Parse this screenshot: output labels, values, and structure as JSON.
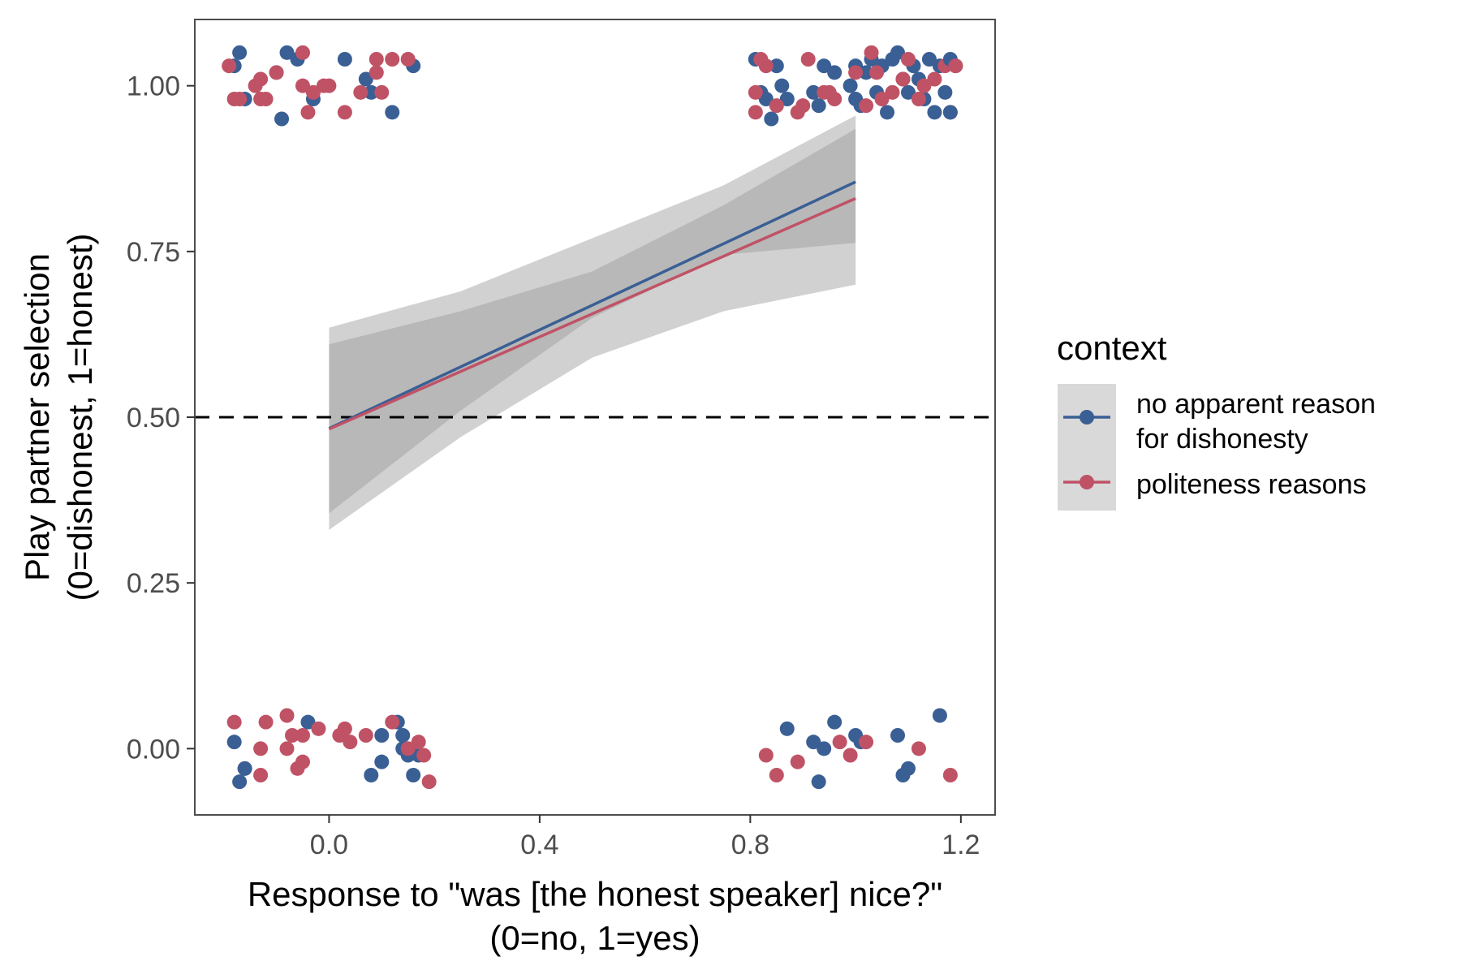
{
  "chart_data": {
    "type": "scatter",
    "title": "",
    "xlabel": [
      "Response to \"was [the honest speaker] nice?\"",
      "(0=no, 1=yes)"
    ],
    "ylabel": [
      "Play partner selection",
      "(0=dishonest, 1=honest)"
    ],
    "xlim": [
      -0.255,
      1.265
    ],
    "ylim": [
      -0.1,
      1.1
    ],
    "x_ticks": [
      0.0,
      0.4,
      0.8,
      1.2
    ],
    "x_tick_labels": [
      "0.0",
      "0.4",
      "0.8",
      "1.2"
    ],
    "y_ticks": [
      0.0,
      0.25,
      0.5,
      0.75,
      1.0
    ],
    "y_tick_labels": [
      "0.00",
      "0.25",
      "0.50",
      "0.75",
      "1.00"
    ],
    "reference_line": {
      "y": 0.5,
      "style": "dashed",
      "color": "#000000"
    },
    "grid": false,
    "legend": {
      "title": "context",
      "placement": "right",
      "entries": [
        "no apparent reason\nfor dishonesty",
        "politeness reasons"
      ]
    },
    "series": [
      {
        "name": "no apparent reason\nfor dishonesty",
        "color": "#3a5f94",
        "fit": {
          "x": [
            0,
            1
          ],
          "y": [
            0.483,
            0.855
          ]
        },
        "ribbon": {
          "x": [
            0,
            0.25,
            0.5,
            0.75,
            1
          ],
          "lower": [
            0.355,
            0.51,
            0.65,
            0.745,
            0.763
          ],
          "upper": [
            0.61,
            0.66,
            0.72,
            0.82,
            0.935
          ]
        },
        "points": [
          [
            -0.18,
            1.03
          ],
          [
            -0.17,
            1.05
          ],
          [
            -0.16,
            0.98
          ],
          [
            -0.1,
            1.02
          ],
          [
            -0.09,
            0.95
          ],
          [
            -0.08,
            1.05
          ],
          [
            -0.06,
            1.04
          ],
          [
            -0.03,
            0.98
          ],
          [
            0.03,
            1.04
          ],
          [
            0.07,
            1.01
          ],
          [
            0.08,
            0.99
          ],
          [
            0.12,
            0.96
          ],
          [
            0.16,
            1.03
          ],
          [
            0.81,
            1.04
          ],
          [
            0.82,
            0.99
          ],
          [
            0.83,
            0.98
          ],
          [
            0.84,
            0.95
          ],
          [
            0.85,
            1.03
          ],
          [
            0.86,
            1.0
          ],
          [
            0.87,
            0.98
          ],
          [
            0.92,
            0.99
          ],
          [
            0.93,
            0.97
          ],
          [
            0.94,
            1.03
          ],
          [
            0.96,
            1.02
          ],
          [
            0.99,
            1.0
          ],
          [
            1.0,
            0.98
          ],
          [
            1.0,
            1.03
          ],
          [
            1.01,
            0.97
          ],
          [
            1.02,
            1.02
          ],
          [
            1.03,
            1.04
          ],
          [
            1.04,
            0.99
          ],
          [
            1.05,
            1.03
          ],
          [
            1.06,
            0.96
          ],
          [
            1.07,
            1.04
          ],
          [
            1.08,
            1.05
          ],
          [
            1.09,
            1.01
          ],
          [
            1.1,
            0.99
          ],
          [
            1.11,
            1.03
          ],
          [
            1.12,
            1.01
          ],
          [
            1.13,
            0.98
          ],
          [
            1.14,
            1.04
          ],
          [
            1.15,
            0.96
          ],
          [
            1.16,
            1.03
          ],
          [
            1.17,
            0.99
          ],
          [
            1.18,
            1.04
          ],
          [
            1.19,
            1.03
          ],
          [
            1.18,
            0.96
          ],
          [
            -0.18,
            0.01
          ],
          [
            -0.17,
            -0.05
          ],
          [
            -0.16,
            -0.03
          ],
          [
            -0.04,
            0.04
          ],
          [
            0.08,
            -0.04
          ],
          [
            0.1,
            -0.02
          ],
          [
            0.1,
            0.02
          ],
          [
            0.13,
            0.04
          ],
          [
            0.14,
            0.02
          ],
          [
            0.14,
            0.0
          ],
          [
            0.15,
            -0.01
          ],
          [
            0.16,
            -0.04
          ],
          [
            0.17,
            -0.01
          ],
          [
            0.87,
            0.03
          ],
          [
            0.92,
            0.01
          ],
          [
            0.93,
            -0.05
          ],
          [
            0.94,
            0.0
          ],
          [
            0.96,
            0.04
          ],
          [
            1.0,
            0.02
          ],
          [
            1.01,
            0.01
          ],
          [
            1.08,
            0.02
          ],
          [
            1.09,
            -0.04
          ],
          [
            1.1,
            -0.03
          ],
          [
            1.16,
            0.05
          ]
        ]
      },
      {
        "name": "politeness reasons",
        "color": "#c05266",
        "fit": {
          "x": [
            0,
            1
          ],
          "y": [
            0.482,
            0.83
          ]
        },
        "ribbon": {
          "x": [
            0,
            0.25,
            0.5,
            0.75,
            1
          ],
          "lower": [
            0.33,
            0.47,
            0.59,
            0.66,
            0.7
          ],
          "upper": [
            0.635,
            0.69,
            0.77,
            0.85,
            0.955
          ]
        },
        "points": [
          [
            -0.19,
            1.03
          ],
          [
            -0.18,
            0.98
          ],
          [
            -0.17,
            0.98
          ],
          [
            -0.14,
            1.0
          ],
          [
            -0.13,
            1.01
          ],
          [
            -0.13,
            0.98
          ],
          [
            -0.12,
            0.98
          ],
          [
            -0.1,
            1.02
          ],
          [
            -0.05,
            1.0
          ],
          [
            -0.04,
            0.96
          ],
          [
            -0.03,
            0.99
          ],
          [
            -0.01,
            1.0
          ],
          [
            0.0,
            1.0
          ],
          [
            0.03,
            0.96
          ],
          [
            0.06,
            0.99
          ],
          [
            0.09,
            1.04
          ],
          [
            0.09,
            1.02
          ],
          [
            0.1,
            0.99
          ],
          [
            0.12,
            1.04
          ],
          [
            0.15,
            1.04
          ],
          [
            -0.05,
            1.05
          ],
          [
            0.81,
            0.99
          ],
          [
            0.81,
            0.96
          ],
          [
            0.82,
            1.04
          ],
          [
            0.83,
            1.03
          ],
          [
            0.85,
            0.97
          ],
          [
            0.89,
            0.96
          ],
          [
            0.9,
            0.97
          ],
          [
            0.91,
            1.04
          ],
          [
            0.94,
            0.99
          ],
          [
            0.95,
            0.99
          ],
          [
            0.96,
            0.98
          ],
          [
            1.0,
            1.02
          ],
          [
            1.02,
            0.97
          ],
          [
            1.03,
            1.05
          ],
          [
            1.04,
            1.02
          ],
          [
            1.05,
            0.98
          ],
          [
            1.07,
            0.99
          ],
          [
            1.09,
            1.01
          ],
          [
            1.1,
            1.04
          ],
          [
            1.12,
            0.98
          ],
          [
            1.13,
            1.0
          ],
          [
            1.15,
            1.01
          ],
          [
            1.17,
            1.03
          ],
          [
            1.18,
            0.96
          ],
          [
            1.19,
            1.03
          ],
          [
            -0.18,
            0.04
          ],
          [
            -0.16,
            -0.03
          ],
          [
            -0.13,
            -0.04
          ],
          [
            -0.13,
            0.0
          ],
          [
            -0.12,
            0.04
          ],
          [
            -0.08,
            0.05
          ],
          [
            -0.08,
            0.0
          ],
          [
            -0.07,
            0.02
          ],
          [
            -0.06,
            -0.03
          ],
          [
            -0.05,
            0.02
          ],
          [
            -0.05,
            -0.02
          ],
          [
            -0.02,
            0.03
          ],
          [
            0.02,
            0.02
          ],
          [
            0.03,
            0.03
          ],
          [
            0.04,
            0.01
          ],
          [
            0.07,
            0.02
          ],
          [
            0.12,
            0.04
          ],
          [
            0.15,
            0.0
          ],
          [
            0.17,
            0.01
          ],
          [
            0.18,
            -0.01
          ],
          [
            0.19,
            -0.05
          ],
          [
            0.83,
            -0.01
          ],
          [
            0.85,
            -0.04
          ],
          [
            0.89,
            -0.02
          ],
          [
            0.97,
            0.01
          ],
          [
            0.99,
            -0.01
          ],
          [
            1.02,
            0.01
          ],
          [
            1.12,
            0.0
          ],
          [
            1.18,
            -0.04
          ]
        ]
      }
    ]
  }
}
